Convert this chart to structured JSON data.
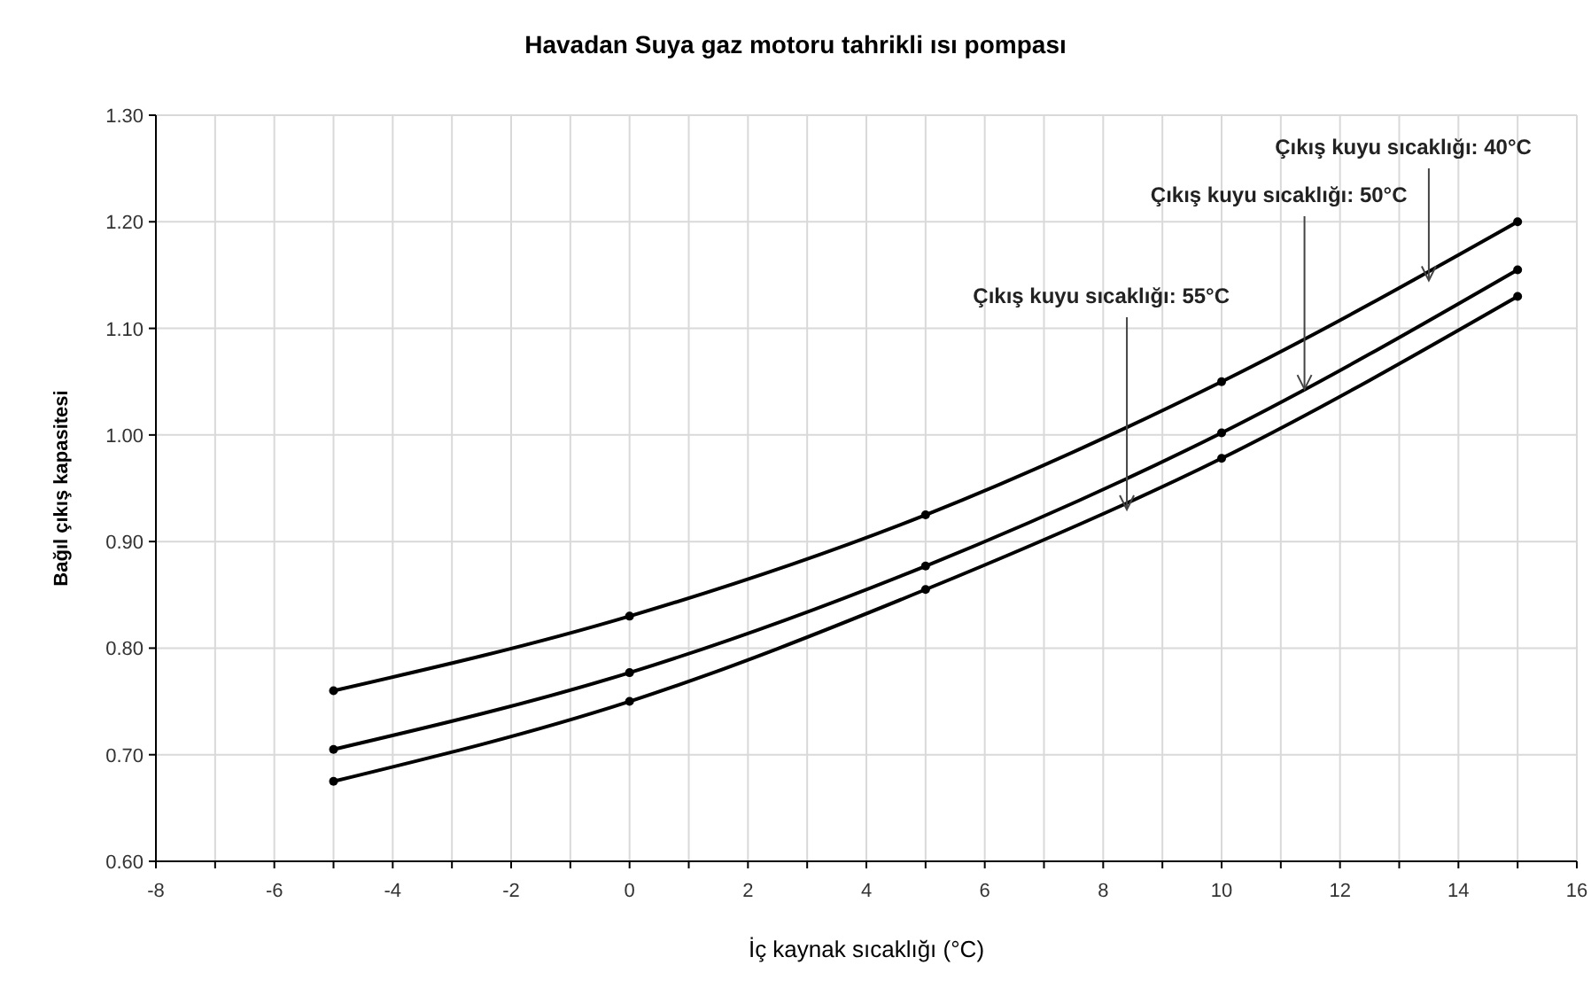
{
  "chart_data": {
    "type": "line",
    "title": "Havadan Suya gaz motoru tahrikli ısı pompası",
    "xlabel": "İç kaynak sıcaklığı (°C)",
    "ylabel": "Bağıl çıkış kapasitesi",
    "x": [
      -5,
      0,
      5,
      10,
      15
    ],
    "series": [
      {
        "color": "#000000",
        "values": [
          0.76,
          0.83,
          0.925,
          1.05,
          1.2
        ]
      },
      {
        "color": "#000000",
        "values": [
          0.705,
          0.777,
          0.877,
          1.002,
          1.155
        ]
      },
      {
        "color": "#000000",
        "values": [
          0.675,
          0.75,
          0.855,
          0.978,
          1.13
        ]
      }
    ],
    "xlim": [
      -8,
      16
    ],
    "xticks": [
      -8,
      {
        "value": -7,
        "label": null
      },
      -6,
      {
        "value": -5,
        "label": null
      },
      -4,
      {
        "value": -3,
        "label": null
      },
      -2,
      {
        "value": -1,
        "label": null
      },
      0,
      {
        "value": 1,
        "label": null
      },
      2,
      {
        "value": 3,
        "label": null
      },
      4,
      {
        "value": 5,
        "label": null
      },
      6,
      {
        "value": 7,
        "label": null
      },
      8,
      {
        "value": 9,
        "label": null
      },
      10,
      {
        "value": 11,
        "label": null
      },
      12,
      {
        "value": 13,
        "label": null
      },
      14,
      {
        "value": 15,
        "label": null
      },
      16
    ],
    "ylim": [
      0.6,
      1.3
    ],
    "yticks": [
      {
        "value": 0.6,
        "label": "0.60"
      },
      {
        "value": 0.7,
        "label": "0.70"
      },
      {
        "value": 0.8,
        "label": "0.80"
      },
      {
        "value": 0.9,
        "label": "0.90"
      },
      {
        "value": 1.0,
        "label": "1.00"
      },
      {
        "value": 1.1,
        "label": "1.10"
      },
      {
        "value": 1.2,
        "label": "1.20"
      },
      {
        "value": 1.3,
        "label": "1.30"
      }
    ],
    "grid": true,
    "marker": "circle",
    "line_style": "solid",
    "annotations": [
      {
        "text": "Çıkış kuyu sıcaklığı: 40°C",
        "x": 13.5,
        "y": 1.145
      },
      {
        "text": "Çıkış kuyu sıcaklığı: 50°C",
        "x": 11.4,
        "y": 1.043
      },
      {
        "text": "Çıkış kuyu sıcaklığı: 55°C",
        "x": 8.4,
        "y": 0.93
      }
    ]
  }
}
